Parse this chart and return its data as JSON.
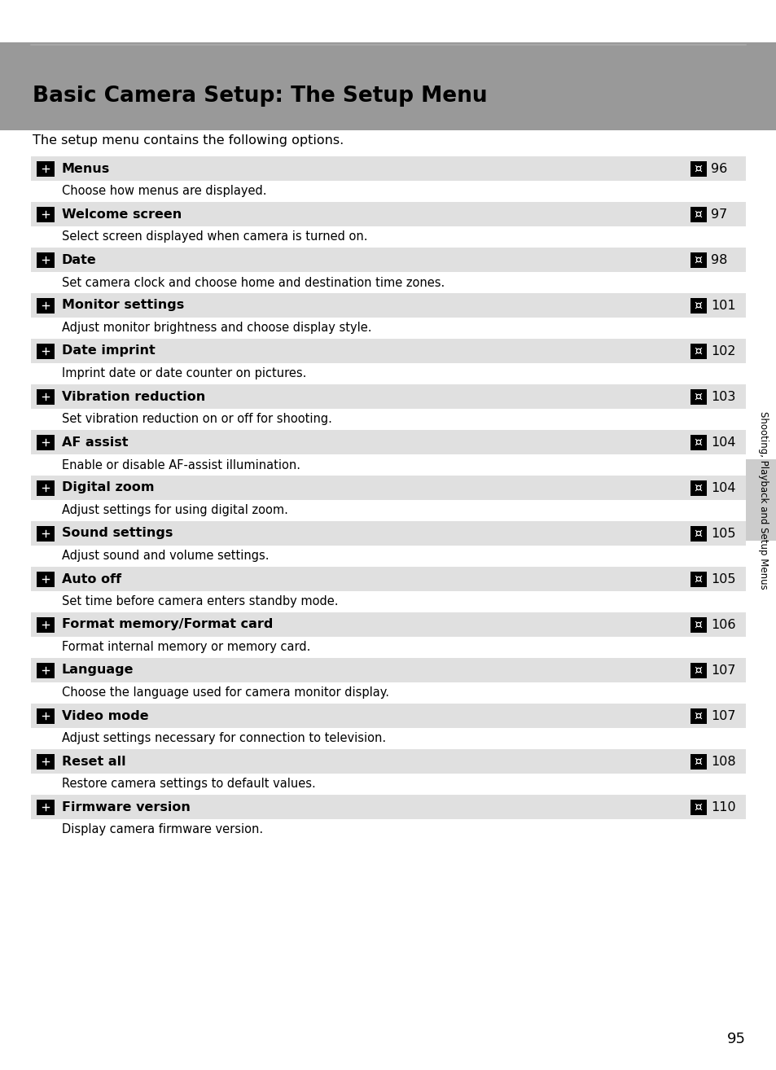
{
  "title": "Basic Camera Setup: The Setup Menu",
  "intro": "The setup menu contains the following options.",
  "page_number": "95",
  "sidebar_text": "Shooting, Playback and Setup Menus",
  "header_gray": "#999999",
  "row_gray": "#e0e0e0",
  "white": "#ffffff",
  "rows": [
    {
      "label": "Menus",
      "page": "96",
      "desc": "Choose how menus are displayed."
    },
    {
      "label": "Welcome screen",
      "page": "97",
      "desc": "Select screen displayed when camera is turned on."
    },
    {
      "label": "Date",
      "page": "98",
      "desc": "Set camera clock and choose home and destination time zones."
    },
    {
      "label": "Monitor settings",
      "page": "101",
      "desc": "Adjust monitor brightness and choose display style."
    },
    {
      "label": "Date imprint",
      "page": "102",
      "desc": "Imprint date or date counter on pictures."
    },
    {
      "label": "Vibration reduction",
      "page": "103",
      "desc": "Set vibration reduction on or off for shooting."
    },
    {
      "label": "AF assist",
      "page": "104",
      "desc": "Enable or disable AF-assist illumination."
    },
    {
      "label": "Digital zoom",
      "page": "104",
      "desc": "Adjust settings for using digital zoom."
    },
    {
      "label": "Sound settings",
      "page": "105",
      "desc": "Adjust sound and volume settings."
    },
    {
      "label": "Auto off",
      "page": "105",
      "desc": "Set time before camera enters standby mode."
    },
    {
      "label": "Format memory/Format card",
      "page": "106",
      "desc": "Format internal memory or memory card."
    },
    {
      "label": "Language",
      "page": "107",
      "desc": "Choose the language used for camera monitor display."
    },
    {
      "label": "Video mode",
      "page": "107",
      "desc": "Adjust settings necessary for connection to television."
    },
    {
      "label": "Reset all",
      "page": "108",
      "desc": "Restore camera settings to default values."
    },
    {
      "label": "Firmware version",
      "page": "110",
      "desc": "Display camera firmware version."
    }
  ]
}
